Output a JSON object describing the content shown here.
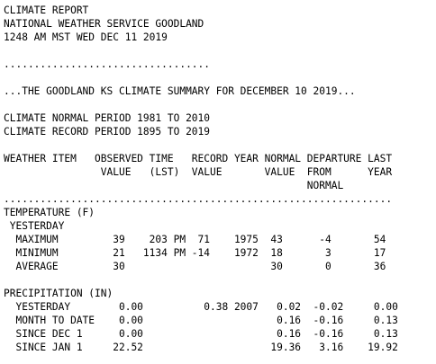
{
  "header": {
    "title": "CLIMATE REPORT",
    "office": "NATIONAL WEATHER SERVICE GOODLAND",
    "issued": "1248 AM MST WED DEC 11 2019"
  },
  "dot_separator": "..................................",
  "summary_title": "...THE GOODLAND KS CLIMATE SUMMARY FOR DECEMBER 10 2019...",
  "normal_period": "CLIMATE NORMAL PERIOD 1981 TO 2010",
  "record_period": "CLIMATE RECORD PERIOD 1895 TO 2019",
  "column_headers": [
    "WEATHER ITEM   OBSERVED TIME   RECORD YEAR NORMAL DEPARTURE LAST",
    "                VALUE   (LST)  VALUE       VALUE  FROM      YEAR",
    "                                                  NORMAL"
  ],
  "table_divider": "................................................................",
  "temperature": {
    "heading": "TEMPERATURE (F)",
    "subheading": " YESTERDAY",
    "rows": [
      "  MAXIMUM         39    203 PM  71    1975  43      -4       54",
      "  MINIMUM         21   1134 PM -14    1972  18       3       17",
      "  AVERAGE         30                        30       0       36"
    ]
  },
  "precipitation": {
    "heading": "PRECIPITATION (IN)",
    "rows": [
      "  YESTERDAY        0.00          0.38 2007   0.02  -0.02     0.00",
      "  MONTH TO DATE    0.00                      0.16  -0.16     0.13",
      "  SINCE DEC 1      0.00                      0.16  -0.16     0.13",
      "  SINCE JAN 1     22.52                     19.36   3.16    19.92"
    ]
  }
}
